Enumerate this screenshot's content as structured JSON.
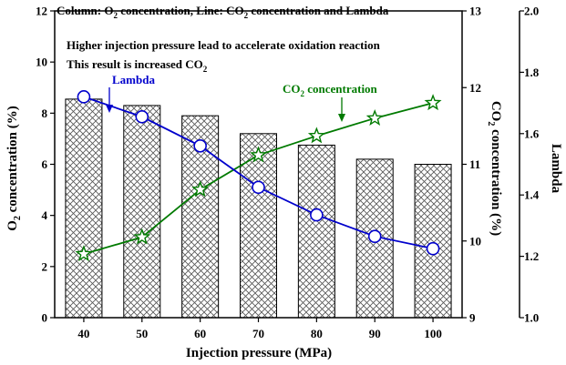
{
  "chart_data": {
    "type": "bar",
    "categories": [
      "40",
      "50",
      "60",
      "70",
      "80",
      "90",
      "100"
    ],
    "xlabel": "Injection pressure (MPa)",
    "header": {
      "t1": "Column: O",
      "s1": "2",
      "t2": " concentration, Line: CO",
      "s2": "2",
      "t3": " concentration and Lambda"
    },
    "annotation": {
      "line1": "Higher injection pressure lead to accelerate oxidation reaction",
      "line2_text": "This result is increased CO",
      "line2_sub": "2"
    },
    "bars": {
      "axis": "left",
      "values": [
        8.55,
        8.3,
        7.9,
        7.2,
        6.75,
        6.2,
        6.0
      ],
      "ylabel": {
        "t1": "O",
        "sub": "2",
        "t2": " concentration (%)"
      },
      "ylim": [
        0,
        12
      ],
      "ticks": [
        "0",
        "2",
        "4",
        "6",
        "8",
        "10",
        "12"
      ]
    },
    "series": [
      {
        "name": "CO2 concentration",
        "label_text": "CO",
        "label_sub": "2",
        "label_rest": " concentration",
        "axis": "right1",
        "marker": "star",
        "color": "#007a00",
        "values": [
          9.83,
          10.05,
          10.67,
          11.12,
          11.37,
          11.6,
          11.8
        ]
      },
      {
        "name": "Lambda",
        "label_text": "Lambda",
        "axis": "right2",
        "marker": "circle",
        "color": "#0000cc",
        "values": [
          1.72,
          1.655,
          1.56,
          1.425,
          1.335,
          1.265,
          1.225
        ]
      }
    ],
    "right1": {
      "ylabel": {
        "t1": "CO",
        "sub": "2",
        "t2": " concentration (%)"
      },
      "ylim": [
        9,
        13
      ],
      "ticks": [
        "9",
        "10",
        "11",
        "12",
        "13"
      ]
    },
    "right2": {
      "ylabel": "Lambda",
      "ylim": [
        1.0,
        2.0
      ],
      "ticks": [
        "1.0",
        "1.2",
        "1.4",
        "1.6",
        "1.8",
        "2.0"
      ]
    }
  }
}
